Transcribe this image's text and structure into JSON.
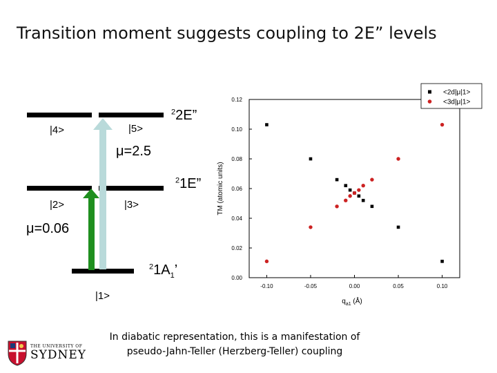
{
  "title": "Transition moment suggests coupling to 2E” levels",
  "diagram": {
    "upper_level": {
      "sup": "2",
      "text": "2E”"
    },
    "middle_level": {
      "sup": "2",
      "text": "1E”"
    },
    "ground_level": {
      "sup": "2",
      "text": "1A",
      "sub": "1",
      "prime": "’"
    },
    "states": [
      "|4>",
      "|5>",
      "|2>",
      "|3>",
      "|1>"
    ],
    "mu_upper": "μ=2.5",
    "mu_lower": "μ=0.06",
    "colors": {
      "up_arrow": "#b9dada",
      "green_arrow": "#1f8f1f",
      "levels": "#000000"
    }
  },
  "chart_data": {
    "type": "scatter",
    "xlabel": "q",
    "xlabel_sub": "a1",
    "xlabel_unit": "(Å)",
    "ylabel": "TM (atomic units)",
    "xlim": [
      -0.12,
      0.12
    ],
    "ylim": [
      0.0,
      0.12
    ],
    "x_ticks": [
      "-0.10",
      "-0.05",
      "0.00",
      "0.05",
      "0.10"
    ],
    "y_ticks": [
      "0.00",
      "0.02",
      "0.04",
      "0.06",
      "0.08",
      "0.10",
      "0.12"
    ],
    "legend_position": "top-right",
    "series": [
      {
        "name": "<2d|μ|1>",
        "marker": "square",
        "color": "#000000",
        "points": [
          [
            -0.1,
            0.103
          ],
          [
            -0.05,
            0.08
          ],
          [
            -0.02,
            0.066
          ],
          [
            -0.01,
            0.062
          ],
          [
            -0.005,
            0.059
          ],
          [
            0.0,
            0.057
          ],
          [
            0.005,
            0.055
          ],
          [
            0.01,
            0.052
          ],
          [
            0.02,
            0.048
          ],
          [
            0.05,
            0.034
          ],
          [
            0.1,
            0.011
          ]
        ]
      },
      {
        "name": "<3d|μ|1>",
        "marker": "circle",
        "color": "#cc2222",
        "points": [
          [
            -0.1,
            0.011
          ],
          [
            -0.05,
            0.034
          ],
          [
            -0.02,
            0.048
          ],
          [
            -0.01,
            0.052
          ],
          [
            -0.005,
            0.055
          ],
          [
            0.0,
            0.057
          ],
          [
            0.005,
            0.059
          ],
          [
            0.01,
            0.062
          ],
          [
            0.02,
            0.066
          ],
          [
            0.05,
            0.08
          ],
          [
            0.1,
            0.103
          ]
        ]
      }
    ]
  },
  "footer": {
    "line1": "In diabatic representation, this is a manifestation of",
    "line2": "pseudo-Jahn-Teller (Herzberg-Teller) coupling"
  },
  "logo": {
    "line1": "THE UNIVERSITY OF",
    "line2": "SYDNEY"
  }
}
